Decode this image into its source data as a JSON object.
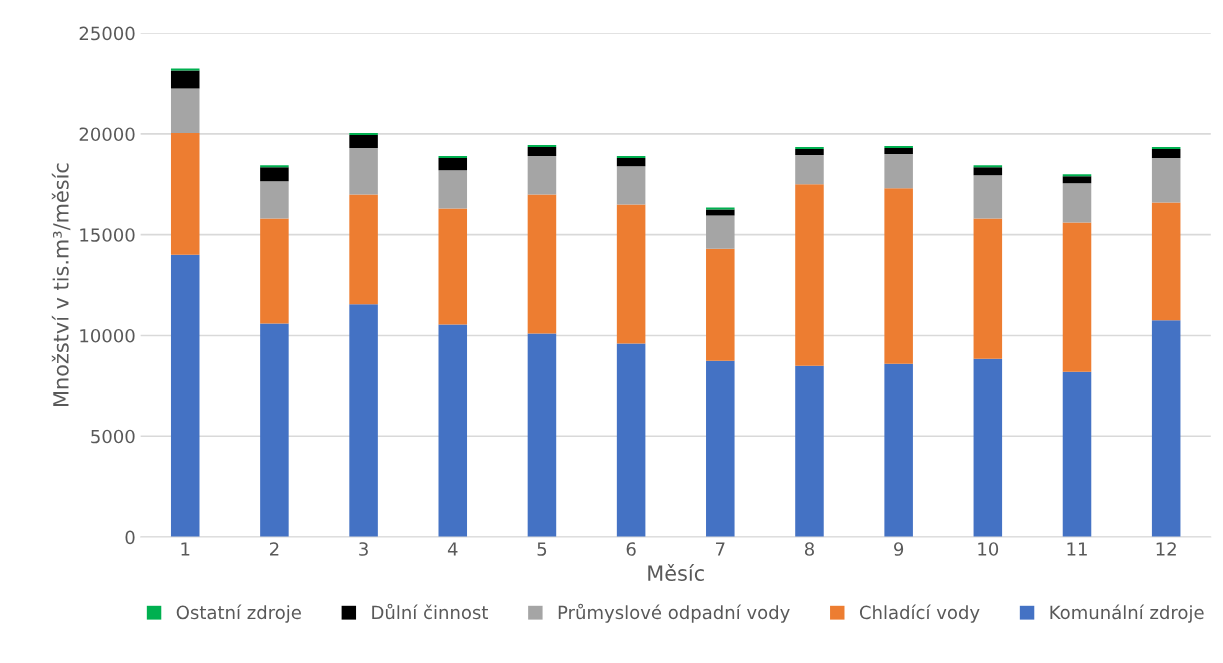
{
  "chart_data": {
    "type": "bar",
    "stacked": true,
    "xlabel": "Měsíc",
    "ylabel": "Množství v tis.m³/měsíc",
    "categories": [
      "1",
      "2",
      "3",
      "4",
      "5",
      "6",
      "7",
      "8",
      "9",
      "10",
      "11",
      "12"
    ],
    "series": [
      {
        "name": "Komunální zdroje",
        "color": "#4472c4",
        "values": [
          14000,
          10600,
          11550,
          10550,
          10100,
          9600,
          8750,
          8500,
          8600,
          8850,
          8200,
          10750
        ]
      },
      {
        "name": "Chladící vody",
        "color": "#ed7d31",
        "values": [
          6050,
          5200,
          5450,
          5750,
          6900,
          6900,
          5550,
          9000,
          8700,
          6950,
          7400,
          5850
        ]
      },
      {
        "name": "Průmyslové odpadní vody",
        "color": "#a5a5a5",
        "values": [
          2200,
          1850,
          2300,
          1900,
          1900,
          1900,
          1650,
          1450,
          1700,
          2150,
          1950,
          2200
        ]
      },
      {
        "name": "Důlní činnost",
        "color": "#000000",
        "values": [
          900,
          700,
          650,
          600,
          450,
          400,
          300,
          300,
          300,
          400,
          350,
          450
        ]
      },
      {
        "name": "Ostatní zdroje",
        "color": "#00b050",
        "values": [
          100,
          100,
          100,
          100,
          100,
          100,
          100,
          100,
          100,
          100,
          100,
          100
        ]
      }
    ],
    "ylim": [
      0,
      25000
    ],
    "yticks": [
      0,
      5000,
      10000,
      15000,
      20000,
      25000
    ],
    "grid": "y",
    "legend": "bottom"
  }
}
